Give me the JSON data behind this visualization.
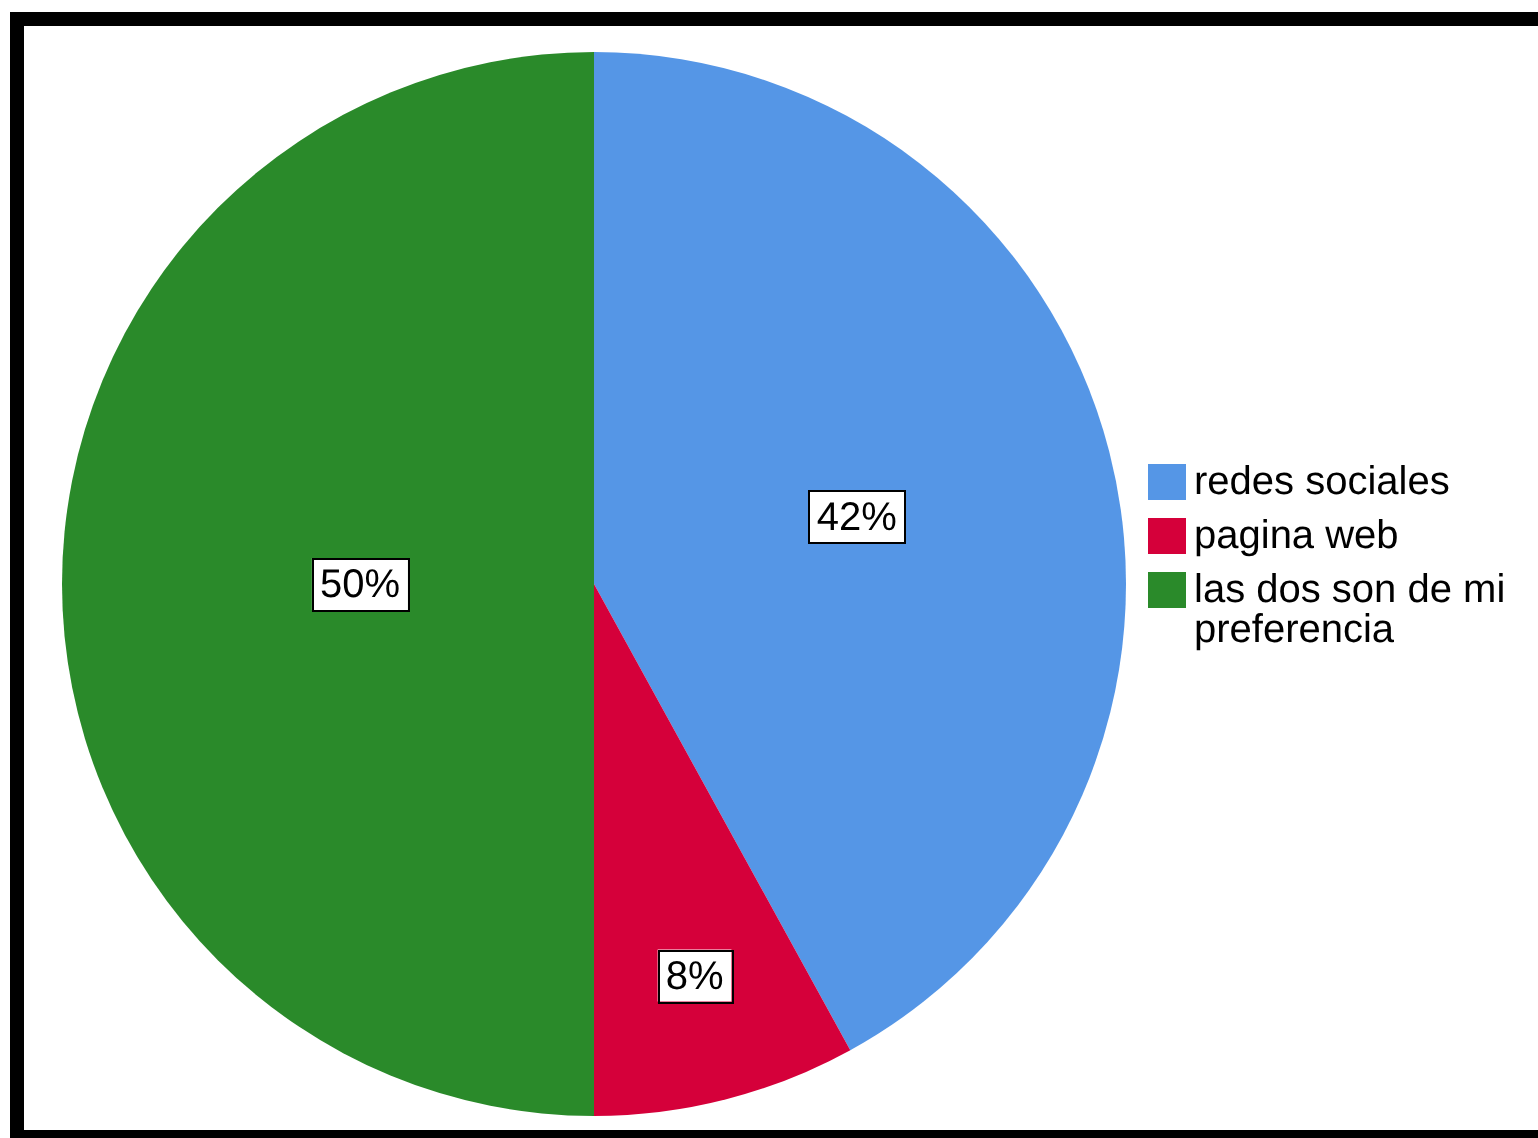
{
  "chart_data": {
    "type": "pie",
    "categories": [
      "redes sociales",
      "pagina web",
      "las dos son de mi preferencia"
    ],
    "values": [
      42,
      8,
      50
    ],
    "colors": [
      "#5596e6",
      "#d5003a",
      "#2a8a2a"
    ],
    "value_labels": [
      "42%",
      "8%",
      "50%"
    ],
    "legend": "right"
  }
}
